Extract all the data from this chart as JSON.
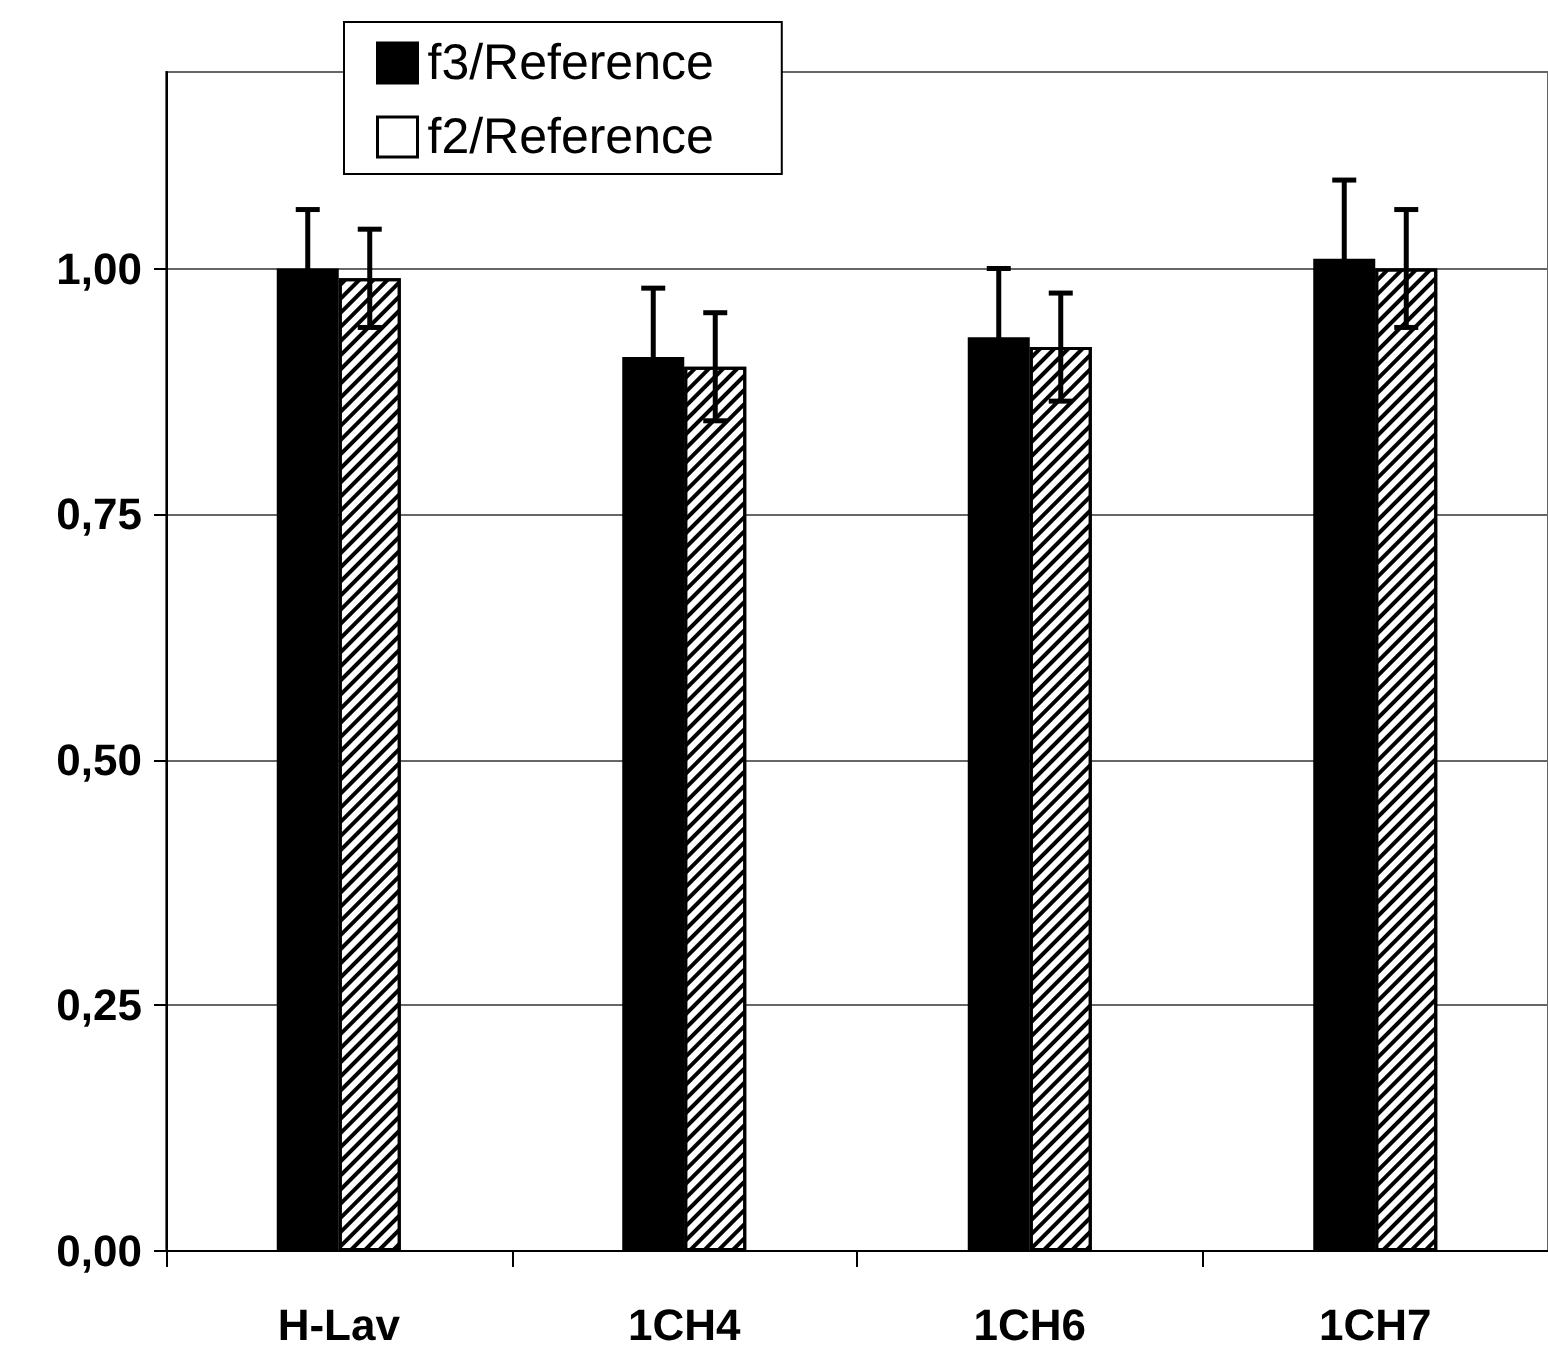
{
  "chart_data": {
    "type": "bar",
    "categories": [
      "H-Lav",
      "1CH4",
      "1CH6",
      "1CH7"
    ],
    "series": [
      {
        "name": "f3/Reference",
        "color": "#000000",
        "values": [
          1.0,
          0.91,
          0.93,
          1.01
        ],
        "errors": [
          0.06,
          0.07,
          0.07,
          0.08
        ]
      },
      {
        "name": "f2/Reference",
        "color": "#ffffff",
        "values": [
          0.99,
          0.9,
          0.92,
          1.0
        ],
        "errors": [
          0.05,
          0.055,
          0.055,
          0.06
        ]
      }
    ],
    "ylim": [
      0,
      1.2
    ],
    "yticks": [
      {
        "value": 0,
        "label": "0,00"
      },
      {
        "value": 0.25,
        "label": "0,25"
      },
      {
        "value": 0.5,
        "label": "0,50"
      },
      {
        "value": 0.75,
        "label": "0,75"
      },
      {
        "value": 1,
        "label": "1,00"
      }
    ],
    "grid": "y",
    "legend": "top left"
  }
}
